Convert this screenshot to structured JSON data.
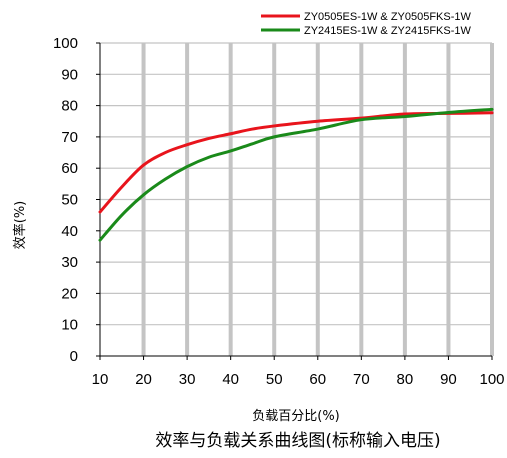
{
  "chart_data": {
    "type": "line",
    "title": "效率与负载关系曲线图(标称输入电压)",
    "xlabel": "负载百分比(%)",
    "ylabel": "效率(%)",
    "xlim": [
      10,
      100
    ],
    "ylim": [
      0,
      100
    ],
    "x_ticks": [
      10,
      20,
      30,
      40,
      50,
      60,
      70,
      80,
      90,
      100
    ],
    "y_ticks": [
      0,
      10,
      20,
      30,
      40,
      50,
      60,
      70,
      80,
      90,
      100
    ],
    "grid": true,
    "legend_position": "top-right",
    "x": [
      10,
      15,
      20,
      25,
      30,
      35,
      40,
      45,
      50,
      60,
      70,
      80,
      90,
      100
    ],
    "series": [
      {
        "name": "ZY0505ES-1W & ZY0505FKS-1W",
        "color": "#e8141c",
        "values": [
          46,
          54,
          61,
          65,
          67.5,
          69.5,
          71,
          72.5,
          73.5,
          75,
          76,
          77.3,
          77.5,
          77.7
        ]
      },
      {
        "name": "ZY2415ES-1W & ZY2415FKS-1W",
        "color": "#1a8a1a",
        "values": [
          37,
          45,
          51.5,
          56.5,
          60.5,
          63.5,
          65.5,
          67.8,
          70,
          72.5,
          75.5,
          76.5,
          77.8,
          78.8
        ]
      }
    ]
  }
}
